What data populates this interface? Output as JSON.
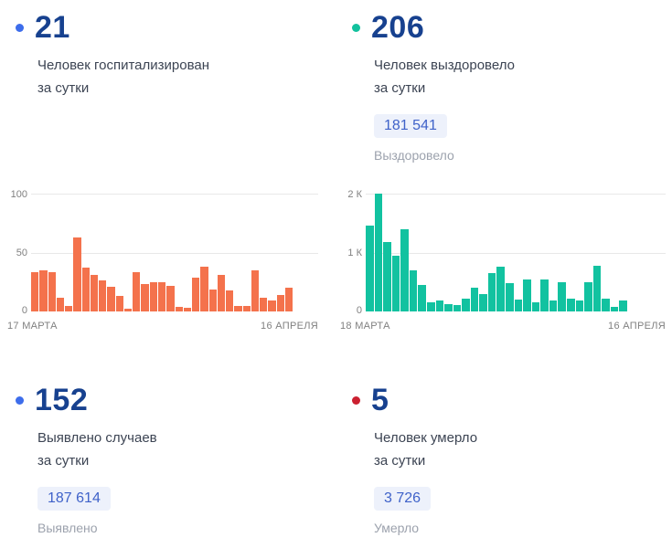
{
  "cards": [
    {
      "id": "hospitalized",
      "dot_color": "#3D6DEB",
      "value": "21",
      "desc_line1": "Человек госпитализирован",
      "desc_line2": "за сутки"
    },
    {
      "id": "recovered",
      "dot_color": "#12C19D",
      "value": "206",
      "desc_line1": "Человек выздоровело",
      "desc_line2": "за сутки",
      "badge": "181 541",
      "badge_label": "Выздоровело"
    },
    {
      "id": "detected",
      "dot_color": "#3D6DEB",
      "value": "152",
      "desc_line1": "Выявлено случаев",
      "desc_line2": "за сутки",
      "badge": "187 614",
      "badge_label": "Выявлено"
    },
    {
      "id": "died",
      "dot_color": "#CB2030",
      "value": "5",
      "desc_line1": "Человек умерло",
      "desc_line2": "за сутки",
      "badge": "3 726",
      "badge_label": "Умерло"
    }
  ],
  "chart_data": [
    {
      "type": "bar",
      "series_name": "hospitalized-per-day",
      "color": "#F4724C",
      "ylim": [
        0,
        100
      ],
      "y_ticks": [
        "100",
        "50",
        "0"
      ],
      "x_start_label": "17 МАРТА",
      "x_end_label": "16 АПРЕЛЯ",
      "grid": "horizontal",
      "values": [
        33,
        35,
        33,
        12,
        5,
        63,
        37,
        31,
        26,
        21,
        13,
        2,
        33,
        23,
        25,
        25,
        22,
        4,
        3,
        29,
        38,
        19,
        31,
        18,
        5,
        5,
        35,
        12,
        9,
        14,
        20
      ]
    },
    {
      "type": "bar",
      "series_name": "recovered-per-day",
      "color": "#12C2A0",
      "ylim": [
        0,
        2000
      ],
      "y_ticks": [
        "2 К",
        "1 К",
        "0"
      ],
      "x_start_label": "18 МАРТА",
      "x_end_label": "16 АПРЕЛЯ",
      "grid": "horizontal",
      "values": [
        1450,
        2000,
        1180,
        950,
        1400,
        700,
        450,
        150,
        190,
        130,
        110,
        210,
        410,
        300,
        650,
        760,
        480,
        200,
        540,
        160,
        540,
        190,
        500,
        210,
        190,
        500,
        770,
        220,
        80,
        190
      ]
    }
  ],
  "colors": {
    "stat_number": "#17418F",
    "description_text": "#3C4453",
    "badge_background": "#EDF1FB",
    "badge_text": "#3F62C9",
    "muted_label": "#9CA2AD",
    "axis_text": "#808080",
    "gridline": "#E8E8E8"
  }
}
